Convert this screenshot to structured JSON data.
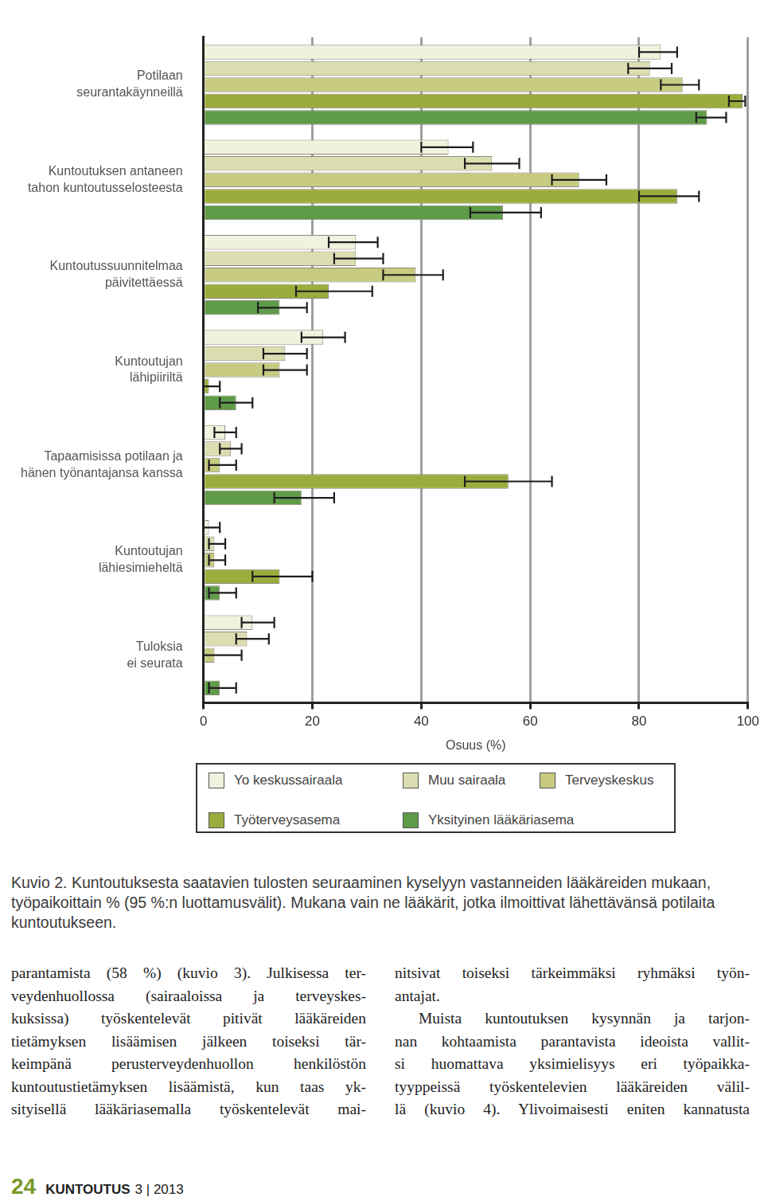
{
  "chart_data": {
    "type": "bar",
    "orientation": "horizontal",
    "categories": [
      [
        "Potilaan",
        "seurantakäynneillä"
      ],
      [
        "Kuntoutuksen antaneen",
        "tahon kuntoutusselosteesta"
      ],
      [
        "Kuntoutussuunnitelmaa",
        "päivitettäessä"
      ],
      [
        "Kuntoutujan",
        "lähipiiriltä"
      ],
      [
        "Tapaamisissa potilaan ja",
        "hänen työnantajansa kanssa"
      ],
      [
        "Kuntoutujan",
        "lähiesimieheltä"
      ],
      [
        "Tuloksia",
        "ei seurata"
      ]
    ],
    "series": [
      {
        "name": "Yo keskussairaala",
        "color": "#f1f2de",
        "values": [
          84,
          45,
          28,
          22,
          4,
          1,
          9
        ],
        "ci_low": [
          80,
          40,
          23,
          18,
          2,
          0,
          7
        ],
        "ci_high": [
          87,
          49.5,
          32,
          26,
          6,
          3,
          13
        ]
      },
      {
        "name": "Muu sairaala",
        "color": "#dcdeb2",
        "values": [
          82,
          53,
          28,
          15,
          5,
          2,
          8
        ],
        "ci_low": [
          78,
          48,
          24,
          11,
          3,
          1,
          6
        ],
        "ci_high": [
          86,
          58,
          33,
          19,
          7,
          4,
          12
        ]
      },
      {
        "name": "Terveyskeskus",
        "color": "#c7cb82",
        "values": [
          88,
          69,
          39,
          14,
          3,
          2,
          2
        ],
        "ci_low": [
          84,
          64,
          33,
          11,
          1,
          1,
          0
        ],
        "ci_high": [
          91,
          74,
          44,
          19,
          6,
          4,
          7
        ]
      },
      {
        "name": "Työterveysasema",
        "color": "#9cac3c",
        "values": [
          99,
          87,
          23,
          1,
          56,
          14,
          0
        ],
        "ci_low": [
          96.5,
          80,
          17,
          0,
          48,
          9,
          0
        ],
        "ci_high": [
          99.5,
          91,
          31,
          3,
          64,
          20,
          0
        ]
      },
      {
        "name": "Yksityinen lääkäriasema",
        "color": "#5f9b49",
        "values": [
          92.5,
          55,
          14,
          6,
          18,
          3,
          3
        ],
        "ci_low": [
          90.5,
          49,
          10,
          3,
          13,
          1,
          1
        ],
        "ci_high": [
          96,
          62,
          19,
          9,
          24,
          6,
          6
        ]
      }
    ],
    "x_label": "Osuus (%)",
    "xlim": [
      0,
      100
    ],
    "xticks": [
      0,
      20,
      40,
      60,
      80,
      100
    ],
    "grid": true,
    "legend": "bottom"
  },
  "caption": "Kuvio 2. Kuntoutuksesta saatavien tulosten seuraaminen kyselyyn vastanneiden lääkäreiden mukaan, työpaikoittain % (95 %:n luottamusvälit). Mukana vain ne lääkärit, jotka ilmoittivat lähettävänsä potilaita kuntoutukseen.",
  "body": {
    "left_column": [
      [
        "parantamista (58 %) (kuvio 3). Julkisessa ter-",
        "veydenhuollossa (sairaaloissa ja terveyskes-",
        "kuksissa) työskentelevät pitivät lääkäreiden",
        "tietämyksen lisäämisen jälkeen toiseksi tär-",
        "keimpänä perusterveydenhuollon henkilöstön",
        "kuntoutustietämyksen lisäämistä, kun taas yk-",
        "sityisellä lääkäriasemalla työskentelevät mai-"
      ]
    ],
    "right_column": [
      [
        "nitsivat toiseksi tärkeimmäksi ryhmäksi työn-",
        "antajat."
      ],
      [
        "Muista kuntoutuksen kysynnän ja tarjon-",
        "nan kohtaamista parantavista ideoista vallit-",
        "si huomattava yksimielisyys eri työpaikka-",
        "tyyppeissä työskentelevien lääkäreiden välil-",
        "lä (kuvio 4). Ylivoimaisesti eniten kannatusta"
      ]
    ]
  },
  "footer": {
    "page": "24",
    "journal": "KUNTOUTUS",
    "issue": "3 | 2013"
  }
}
